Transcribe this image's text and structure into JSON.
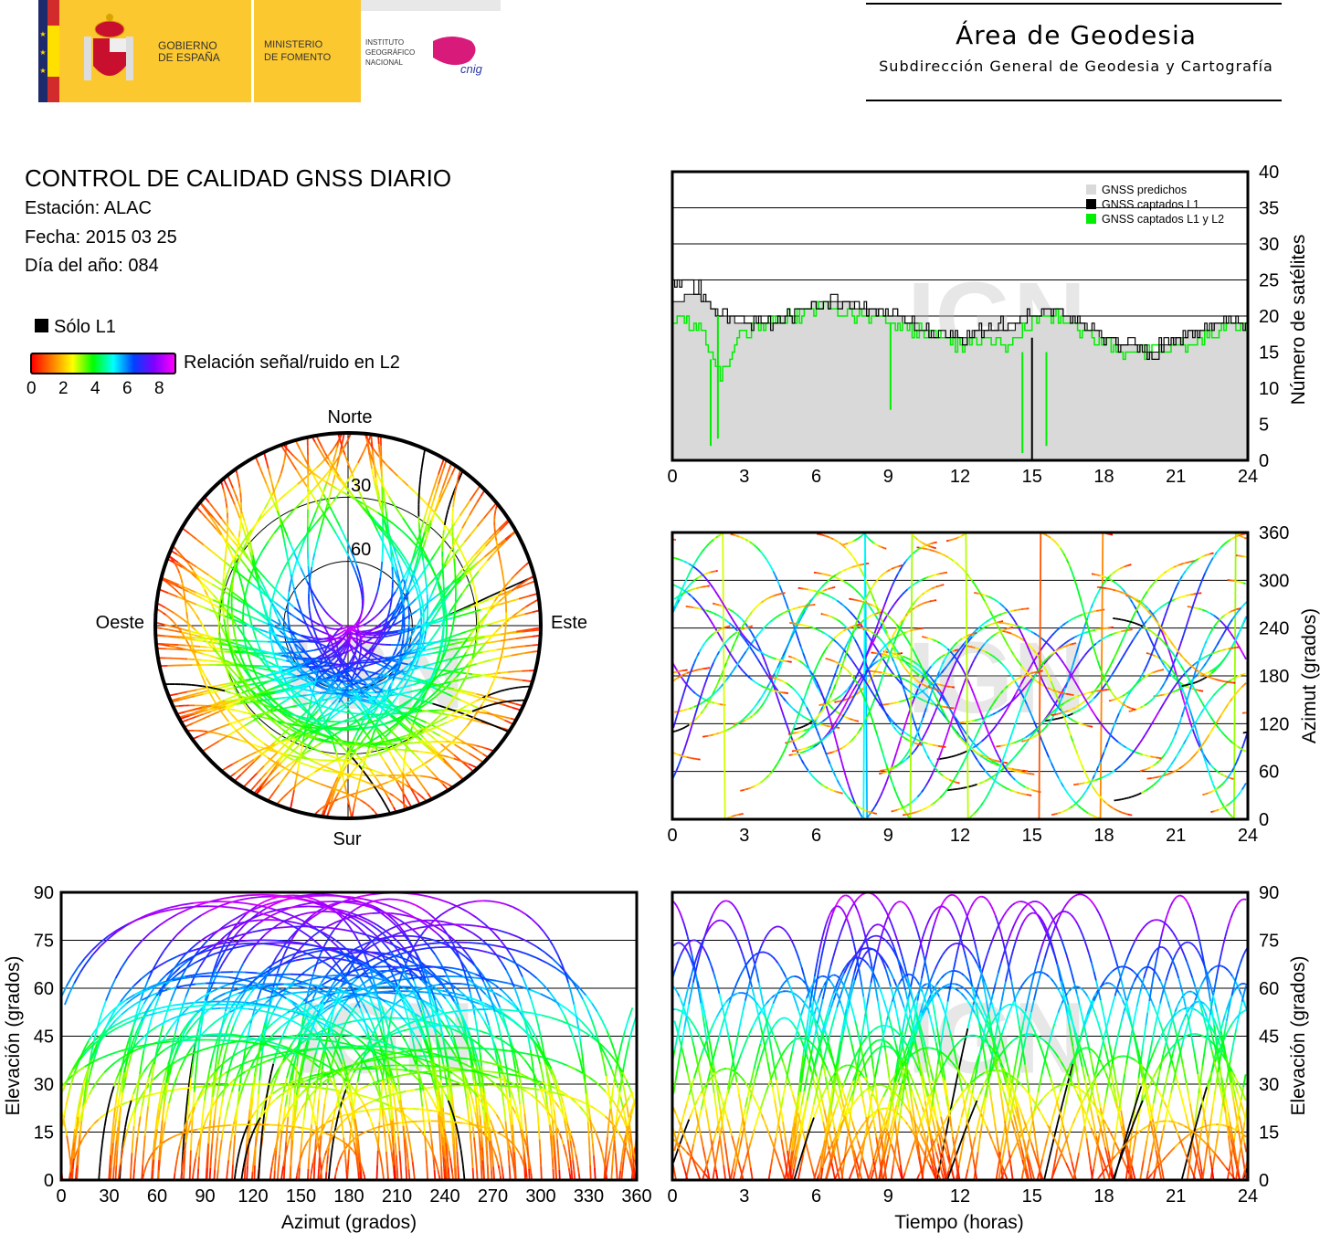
{
  "logos": {
    "gobierno": [
      "GOBIERNO",
      "DE ESPAÑA"
    ],
    "ministerio": [
      "MINISTERIO",
      "DE FOMENTO"
    ],
    "instituto": [
      "INSTITUTO",
      "GEOGRÁFICO",
      "NACIONAL"
    ],
    "cnig": "cnig"
  },
  "header": {
    "title": "Área de Geodesia",
    "subtitle": "Subdirección General de Geodesia y Cartografía"
  },
  "report": {
    "title": "CONTROL DE CALIDAD GNSS DIARIO",
    "station": "Estación: ALAC",
    "date": "Fecha: 2015 03 25",
    "doy": "Día del año: 084"
  },
  "legend": {
    "l1_only": "Sólo L1",
    "snr_label": "Relación señal/ruido en L2",
    "snr_ticks": [
      "0",
      "2",
      "4",
      "6",
      "8"
    ],
    "colors": [
      "#ff0000",
      "#ff8000",
      "#ffff00",
      "#00ff00",
      "#00ffff",
      "#0040ff",
      "#8000ff",
      "#ff00ff"
    ]
  },
  "watermark": "IGN",
  "chart_data": [
    {
      "type": "area",
      "name": "satellite-count",
      "xlabel": "",
      "ylabel": "Número de satélites",
      "xlim": [
        0,
        24
      ],
      "ylim": [
        0,
        40
      ],
      "xticks": [
        "0",
        "3",
        "6",
        "9",
        "12",
        "15",
        "18",
        "21",
        "24"
      ],
      "yticks": [
        "0",
        "5",
        "10",
        "15",
        "20",
        "25",
        "30",
        "35",
        "40"
      ],
      "legend": [
        "GNSS predichos",
        "GNSS captados L1",
        "GNSS captados L1 y L2"
      ],
      "legend_position": "top-right",
      "colors": {
        "predicted": "#d9d9d9",
        "l1": "#000000",
        "l1l2": "#00ee00"
      },
      "x": [
        0,
        1,
        2,
        3,
        4,
        5,
        6,
        7,
        8,
        9,
        10,
        11,
        12,
        13,
        14,
        15,
        16,
        17,
        18,
        19,
        20,
        21,
        22,
        23,
        24
      ],
      "series": [
        {
          "name": "GNSS predichos",
          "values": [
            22,
            23,
            20,
            19,
            19,
            20,
            22,
            22,
            21,
            20,
            19,
            17,
            17,
            18,
            18,
            20,
            21,
            19,
            17,
            16,
            15,
            17,
            18,
            19,
            19
          ]
        },
        {
          "name": "GNSS captados L1",
          "values": [
            24,
            24,
            20,
            19,
            19,
            20,
            22,
            22,
            21,
            21,
            19,
            17,
            17,
            18,
            19,
            20,
            21,
            19,
            17,
            16,
            15,
            17,
            18,
            19,
            19
          ]
        },
        {
          "name": "GNSS captados L1 y L2",
          "values": [
            20,
            19,
            12,
            18,
            19,
            20,
            21,
            21,
            20,
            19,
            18,
            17,
            16,
            17,
            16,
            19,
            20,
            18,
            16,
            15,
            15,
            16,
            17,
            18,
            19
          ]
        }
      ]
    },
    {
      "type": "scatter",
      "name": "azimuth-vs-time",
      "ylabel": "Azimut (grados)",
      "xlim": [
        0,
        24
      ],
      "ylim": [
        0,
        360
      ],
      "xticks": [
        "0",
        "3",
        "6",
        "9",
        "12",
        "15",
        "18",
        "21",
        "24"
      ],
      "yticks": [
        "0",
        "60",
        "120",
        "180",
        "240",
        "300",
        "360"
      ]
    },
    {
      "type": "scatter",
      "name": "elevation-vs-azimuth",
      "xlabel": "Azimut (grados)",
      "ylabel": "Elevación (grados)",
      "xlim": [
        0,
        360
      ],
      "ylim": [
        0,
        90
      ],
      "xticks": [
        "0",
        "30",
        "60",
        "90",
        "120",
        "150",
        "180",
        "210",
        "240",
        "270",
        "300",
        "330",
        "360"
      ],
      "yticks": [
        "0",
        "15",
        "30",
        "45",
        "60",
        "75",
        "90"
      ]
    },
    {
      "type": "scatter",
      "name": "elevation-vs-time",
      "xlabel": "Tiempo (horas)",
      "ylabel": "Elevación (grados)",
      "xlim": [
        0,
        24
      ],
      "ylim": [
        0,
        90
      ],
      "xticks": [
        "0",
        "3",
        "6",
        "9",
        "12",
        "15",
        "18",
        "21",
        "24"
      ],
      "yticks": [
        "0",
        "15",
        "30",
        "45",
        "60",
        "75",
        "90"
      ]
    },
    {
      "type": "scatter",
      "name": "skyplot",
      "directions": {
        "north": "Norte",
        "south": "Sur",
        "west": "Oeste",
        "east": "Este"
      },
      "rings": [
        "30",
        "60"
      ]
    }
  ]
}
